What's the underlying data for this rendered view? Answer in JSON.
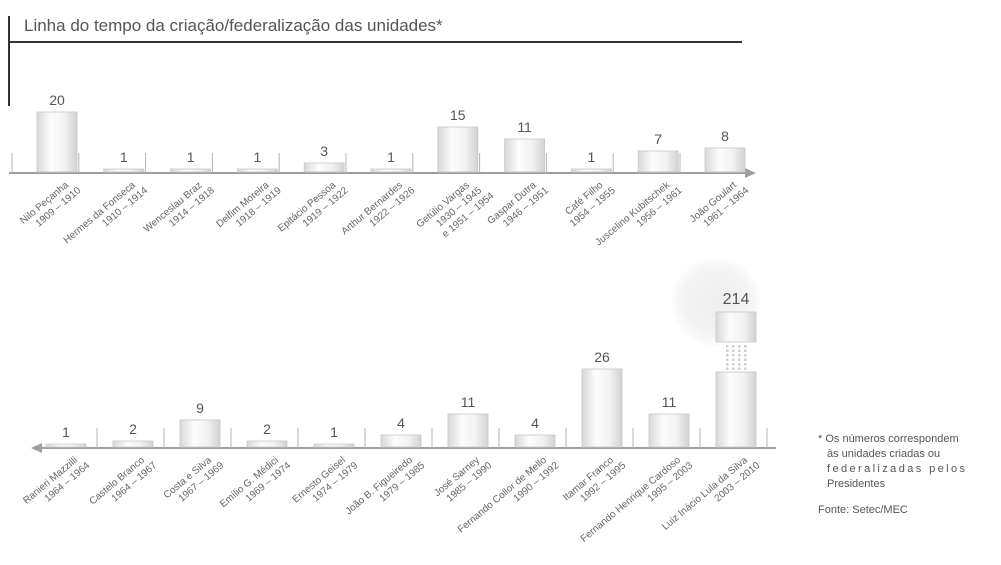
{
  "chart_data": {
    "type": "bar",
    "title": "Linha do tempo da criação/federalização das unidades*",
    "categories": [
      {
        "name": "Nilo Peçanha",
        "period": [
          "1909 – 1910"
        ]
      },
      {
        "name": "Hermes da Fonseca",
        "period": [
          "1910 – 1914"
        ]
      },
      {
        "name": "Wenceslau Braz",
        "period": [
          "1914 – 1918"
        ]
      },
      {
        "name": "Delfim Moreira",
        "period": [
          "1918 – 1919"
        ]
      },
      {
        "name": "Epitácio Pessoa",
        "period": [
          "1919 – 1922"
        ]
      },
      {
        "name": "Arthur Bernardes",
        "period": [
          "1922 – 1926"
        ]
      },
      {
        "name": "Getúlio Vargas",
        "period": [
          "1930 – 1945",
          "e 1951 – 1954"
        ]
      },
      {
        "name": "Gaspar Dutra",
        "period": [
          "1946 – 1951"
        ]
      },
      {
        "name": "Café Filho",
        "period": [
          "1954 – 1955"
        ]
      },
      {
        "name": "Juscelino Kubitschek",
        "period": [
          "1956 – 1961"
        ]
      },
      {
        "name": "João Goulart",
        "period": [
          "1961 – 1964"
        ]
      },
      {
        "name": "Ranieri Mazzilli",
        "period": [
          "1964 – 1964"
        ]
      },
      {
        "name": "Castelo Branco",
        "period": [
          "1964 – 1967"
        ]
      },
      {
        "name": "Costa e Silva",
        "period": [
          "1967 – 1969"
        ]
      },
      {
        "name": "Emílio G. Médici",
        "period": [
          "1969 – 1974"
        ]
      },
      {
        "name": "Ernesto Geisel",
        "period": [
          "1974 – 1979"
        ]
      },
      {
        "name": "João B. Figueiredo",
        "period": [
          "1979 – 1985"
        ]
      },
      {
        "name": "José Sarney",
        "period": [
          "1985 – 1990"
        ]
      },
      {
        "name": "Fernando Collor de Mello",
        "period": [
          "1990 – 1992"
        ]
      },
      {
        "name": "Itamar Franco",
        "period": [
          "1992 – 1995"
        ]
      },
      {
        "name": "Fernando Henrique Cardoso",
        "period": [
          "1995 – 2003"
        ]
      },
      {
        "name": "Luiz Inácio Lula da Silva",
        "period": [
          "2003 – 2010"
        ]
      }
    ],
    "values": [
      20,
      1,
      1,
      1,
      3,
      1,
      15,
      11,
      1,
      7,
      8,
      1,
      2,
      9,
      2,
      1,
      4,
      11,
      4,
      26,
      11,
      214
    ],
    "axis_break_value": 214,
    "grid": false,
    "colors": {
      "bar_light": "#fbfbfb",
      "bar_dark": "#d6d6d6",
      "axis": "#9e9e9e",
      "title_line": "#333333",
      "highlight": "#ececec"
    }
  },
  "footnote": [
    "* Os números correspondem",
    "às unidades criadas ou",
    "federalizadas pelos",
    "Presidentes"
  ],
  "source": "Fonte: Setec/MEC"
}
